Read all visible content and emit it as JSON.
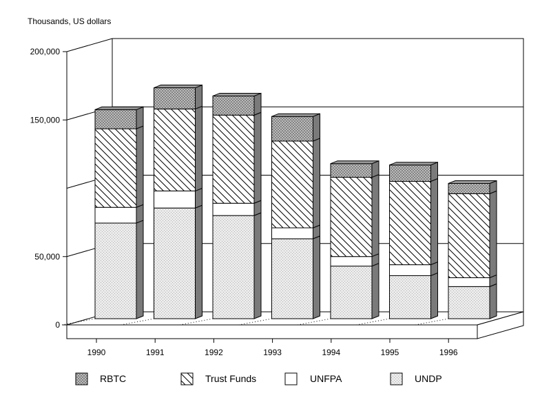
{
  "chart_data": {
    "type": "bar",
    "stacked": true,
    "style": "3d",
    "title": "",
    "ylabel": "Thousands, US dollars",
    "xlabel": "",
    "ylim": [
      0,
      200000
    ],
    "yticks": [
      "0",
      "50,000",
      "150,000",
      "200,000"
    ],
    "yticks_values": [
      0,
      50000,
      150000,
      200000
    ],
    "grid": true,
    "legend_position": "bottom",
    "categories": [
      "1990",
      "1991",
      "1992",
      "1993",
      "1994",
      "1995",
      "1996"
    ],
    "series": [
      {
        "name": "UNDP",
        "values": [
          70000,
          81000,
          75500,
          58500,
          38500,
          31500,
          23500
        ],
        "pattern": "dots",
        "color": "#e8e8e8"
      },
      {
        "name": "UNFPA",
        "values": [
          11500,
          12500,
          9000,
          8000,
          7000,
          8000,
          6500
        ],
        "pattern": "blank",
        "color": "#ffffff"
      },
      {
        "name": "Trust Funds",
        "values": [
          57500,
          60000,
          64500,
          63500,
          58000,
          61000,
          61500
        ],
        "pattern": "hatch",
        "color": "#ffffff"
      },
      {
        "name": "RBTC",
        "values": [
          14000,
          15500,
          14000,
          18000,
          10000,
          12000,
          7500
        ],
        "pattern": "crosshatch",
        "color": "#bbbbbb"
      }
    ]
  }
}
